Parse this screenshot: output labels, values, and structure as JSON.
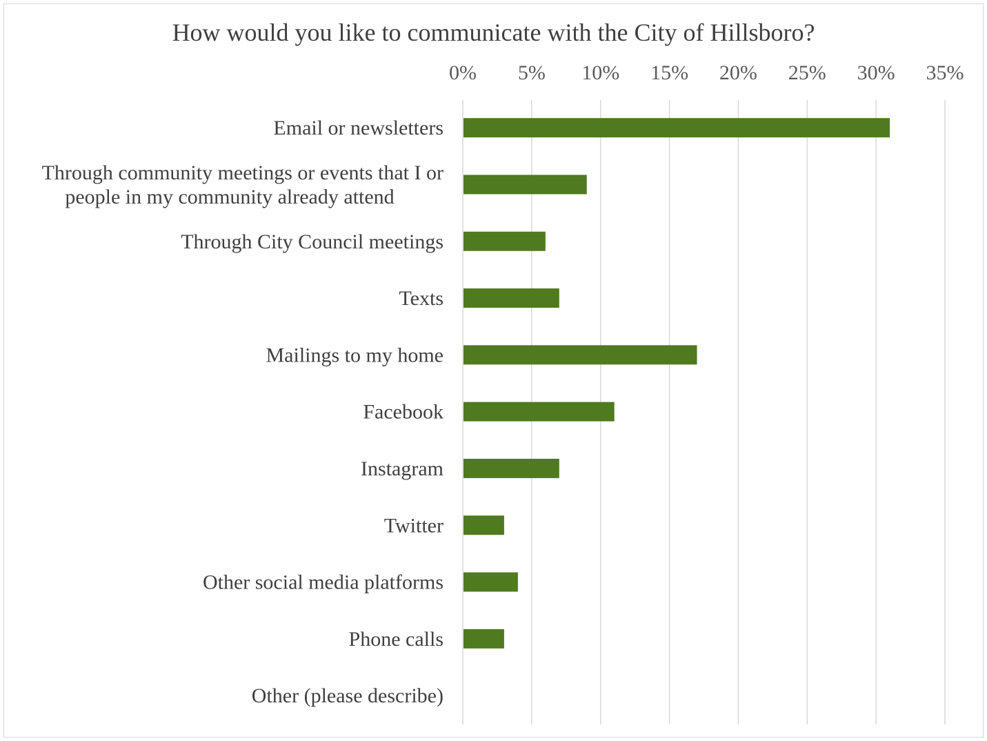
{
  "chart_data": {
    "type": "bar",
    "orientation": "horizontal",
    "title": "How would you like to communicate with the City of Hillsboro?",
    "xlabel": "",
    "ylabel": "",
    "x_axis_position": "top",
    "xlim": [
      0,
      35
    ],
    "x_ticks": [
      "0%",
      "5%",
      "10%",
      "15%",
      "20%",
      "25%",
      "30%",
      "35%"
    ],
    "grid": true,
    "legend": "none",
    "bar_color": "#4f7a1f",
    "categories": [
      [
        "Email or newsletters"
      ],
      [
        "Through community meetings or events that I or",
        "people in my community already attend"
      ],
      [
        "Through City Council meetings"
      ],
      [
        "Texts"
      ],
      [
        "Mailings to my home"
      ],
      [
        "Facebook"
      ],
      [
        "Instagram"
      ],
      [
        "Twitter"
      ],
      [
        "Other social media platforms"
      ],
      [
        "Phone calls"
      ],
      [
        "Other (please describe)"
      ]
    ],
    "values": [
      31,
      9,
      6,
      7,
      17,
      11,
      7,
      3,
      4,
      3,
      0
    ]
  }
}
